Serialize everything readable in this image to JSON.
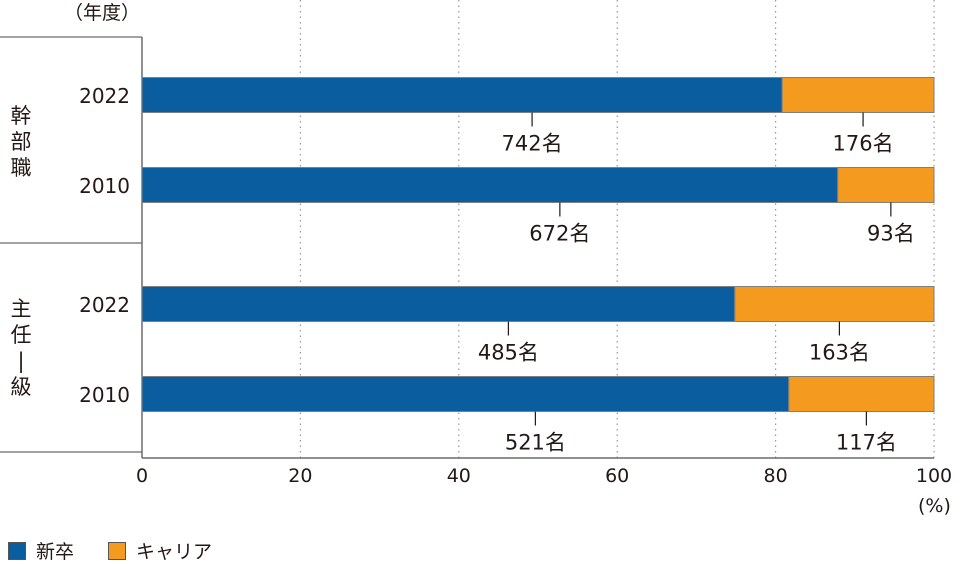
{
  "chart_data": {
    "type": "bar",
    "orientation": "horizontal",
    "stacked": "percent",
    "y_axis_unit": "（年度）",
    "x_axis_unit": "(%)",
    "xlim": [
      0,
      100
    ],
    "x_ticks": [
      "0",
      "20",
      "40",
      "60",
      "80",
      "100"
    ],
    "grid": "vertical dotted",
    "legend_position": "bottom-left",
    "colors": {
      "shinsotsu": "#0a5e9f",
      "career": "#f39a1f"
    },
    "series": [
      {
        "name": "新卒",
        "color": "#0a5e9f"
      },
      {
        "name": "キャリア",
        "color": "#f39a1f"
      }
    ],
    "groups": [
      {
        "label": "幹部職",
        "rows": [
          {
            "year": "2022",
            "values": [
              742,
              176
            ],
            "labels": [
              "742名",
              "176名"
            ]
          },
          {
            "year": "2010",
            "values": [
              672,
              93
            ],
            "labels": [
              "672名",
              "93名"
            ]
          }
        ]
      },
      {
        "label": "主任Ⅰ級",
        "rows": [
          {
            "year": "2022",
            "values": [
              485,
              163
            ],
            "labels": [
              "485名",
              "163名"
            ]
          },
          {
            "year": "2010",
            "values": [
              521,
              117
            ],
            "labels": [
              "521名",
              "117名"
            ]
          }
        ]
      }
    ]
  }
}
